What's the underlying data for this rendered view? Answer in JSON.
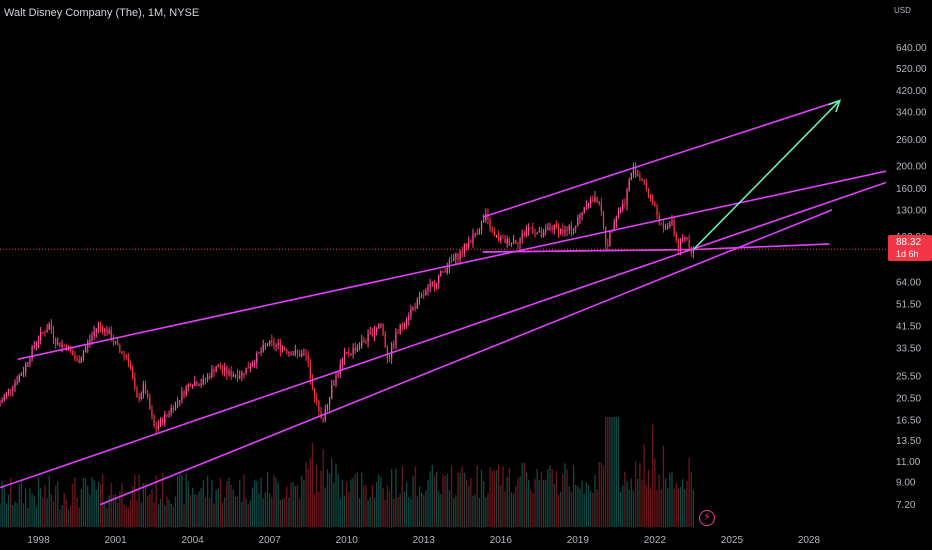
{
  "header": {
    "title": "Walt Disney Company (The), 1M, NYSE",
    "currency": "USD"
  },
  "price_tag": {
    "price": "88.32",
    "countdown": "1d 6h"
  },
  "colors": {
    "background": "#000000",
    "candle_up": "#26a69a",
    "candle_down": "#f23645",
    "price_candles": "#e91e63",
    "trendlines": "#e040fb",
    "projection_arrow": "#69f0ae",
    "price_line": "#f23645"
  },
  "icons": {
    "replay": "lightning-icon"
  },
  "chart_data": {
    "type": "candlestick",
    "symbol": "Walt Disney Company (The)",
    "interval": "1M",
    "exchange": "NYSE",
    "y_scale": "log",
    "ylim": [
      6.5,
      760
    ],
    "xlim": [
      1996.5,
      2031
    ],
    "y_ticks": [
      "640.00",
      "520.00",
      "420.00",
      "340.00",
      "260.00",
      "200.00",
      "160.00",
      "130.00",
      "100.00",
      "64.00",
      "51.50",
      "41.50",
      "33.50",
      "25.50",
      "20.50",
      "16.50",
      "13.50",
      "11.00",
      "9.00",
      "7.20"
    ],
    "x_ticks": [
      "1998",
      "2001",
      "2004",
      "2007",
      "2010",
      "2013",
      "2016",
      "2019",
      "2022",
      "2025",
      "2028"
    ],
    "last_price": 88.32,
    "price_path": [
      [
        1996.5,
        19
      ],
      [
        1997.5,
        27
      ],
      [
        1998.0,
        36
      ],
      [
        1998.5,
        42
      ],
      [
        1998.8,
        35
      ],
      [
        1999.2,
        34
      ],
      [
        1999.6,
        29
      ],
      [
        2000.0,
        35
      ],
      [
        2000.4,
        42
      ],
      [
        2000.8,
        39
      ],
      [
        2001.2,
        33
      ],
      [
        2001.6,
        30
      ],
      [
        2001.9,
        20
      ],
      [
        2002.2,
        23
      ],
      [
        2002.6,
        15
      ],
      [
        2003.0,
        17
      ],
      [
        2003.5,
        20
      ],
      [
        2004.0,
        24
      ],
      [
        2004.5,
        24
      ],
      [
        2005.0,
        28
      ],
      [
        2005.5,
        26
      ],
      [
        2006.0,
        26
      ],
      [
        2006.5,
        30
      ],
      [
        2007.0,
        35
      ],
      [
        2007.5,
        34
      ],
      [
        2008.0,
        32
      ],
      [
        2008.5,
        31
      ],
      [
        2008.8,
        22
      ],
      [
        2009.1,
        16
      ],
      [
        2009.5,
        23
      ],
      [
        2010.0,
        31
      ],
      [
        2010.5,
        34
      ],
      [
        2011.0,
        38
      ],
      [
        2011.4,
        43
      ],
      [
        2011.7,
        30
      ],
      [
        2012.0,
        38
      ],
      [
        2012.5,
        47
      ],
      [
        2013.0,
        55
      ],
      [
        2013.5,
        64
      ],
      [
        2014.0,
        75
      ],
      [
        2014.5,
        85
      ],
      [
        2015.0,
        100
      ],
      [
        2015.5,
        121
      ],
      [
        2015.8,
        100
      ],
      [
        2016.3,
        95
      ],
      [
        2016.8,
        97
      ],
      [
        2017.2,
        110
      ],
      [
        2017.7,
        100
      ],
      [
        2018.0,
        110
      ],
      [
        2018.6,
        105
      ],
      [
        2019.0,
        112
      ],
      [
        2019.4,
        140
      ],
      [
        2019.9,
        145
      ],
      [
        2020.2,
        90
      ],
      [
        2020.5,
        120
      ],
      [
        2020.9,
        140
      ],
      [
        2021.2,
        195
      ],
      [
        2021.6,
        175
      ],
      [
        2022.0,
        140
      ],
      [
        2022.4,
        105
      ],
      [
        2022.7,
        118
      ],
      [
        2023.0,
        90
      ],
      [
        2023.3,
        100
      ],
      [
        2023.5,
        88.32
      ]
    ],
    "volume_range": [
      0,
      1
    ],
    "trendlines": [
      {
        "name": "upper-wedge-line",
        "points": [
          [
            1997.2,
            30
          ],
          [
            2031,
            190
          ]
        ]
      },
      {
        "name": "channel-top",
        "points": [
          [
            2015.3,
            121
          ],
          [
            2029.2,
            380
          ]
        ]
      },
      {
        "name": "horizontal-support",
        "points": [
          [
            2015.3,
            86
          ],
          [
            2023.5,
            88
          ],
          [
            2028.8,
            93
          ]
        ]
      },
      {
        "name": "lower-support-1",
        "points": [
          [
            1996.5,
            8.5
          ],
          [
            2031,
            170
          ]
        ]
      },
      {
        "name": "lower-support-2",
        "points": [
          [
            2000.4,
            7.2
          ],
          [
            2028.9,
            130
          ]
        ]
      },
      {
        "name": "lower-support-3",
        "points": [
          [
            2015.3,
            86
          ],
          [
            2023.5,
            88
          ]
        ]
      }
    ],
    "projection": {
      "from": [
        2023.5,
        88
      ],
      "to": [
        2029.2,
        380
      ]
    },
    "grid": false
  }
}
